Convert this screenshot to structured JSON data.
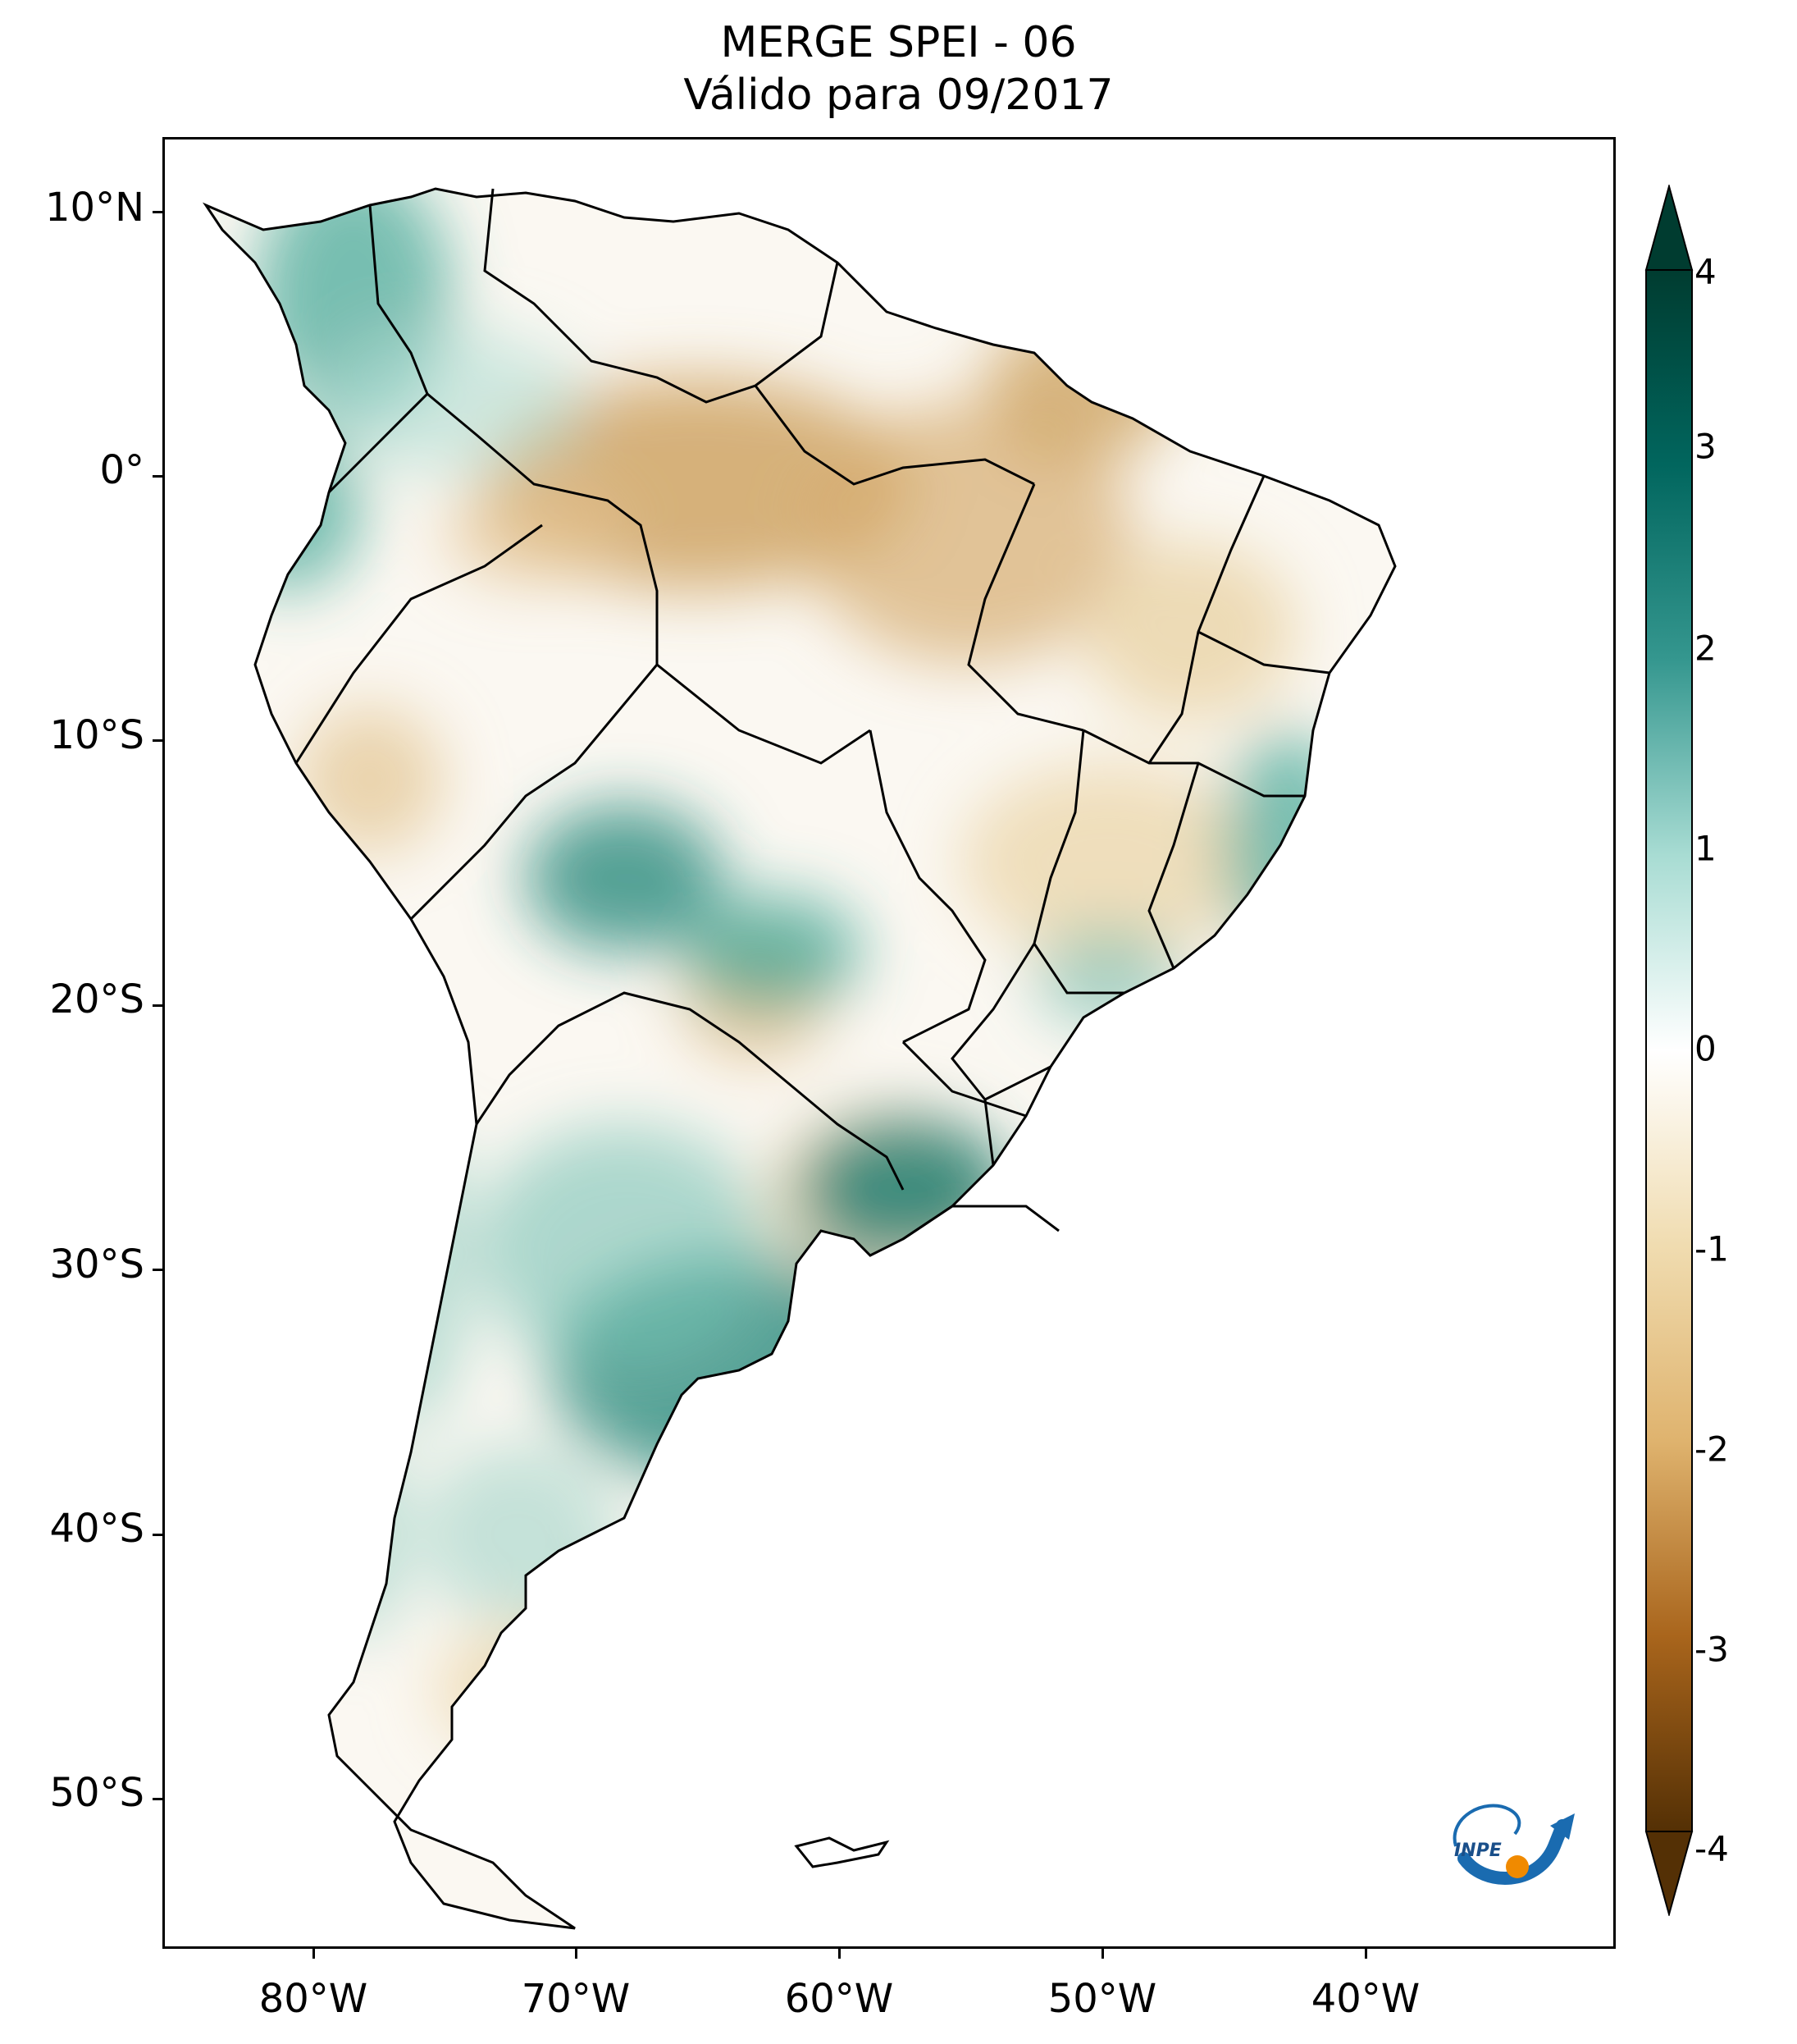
{
  "title": {
    "line1": "MERGE   SPEI - 06",
    "line2": "Válido para 09/2017"
  },
  "map": {
    "lat_ticks": [
      "10°N",
      "0°",
      "10°S",
      "20°S",
      "30°S",
      "40°S",
      "50°S"
    ],
    "lon_ticks": [
      "80°W",
      "70°W",
      "60°W",
      "50°W",
      "40°W"
    ],
    "colors": {
      "wet_dark": "#004c3c",
      "wet_mid": "#2a9988",
      "wet_light": "#c4e8e0",
      "neutral": "#ffffff",
      "dry_light": "#f2e2c0",
      "dry_mid": "#d9a95e",
      "dry_dark": "#543005",
      "border": "#000000"
    }
  },
  "colorbar": {
    "labels": [
      "4",
      "3",
      "2",
      "1",
      "0",
      "-1",
      "-2",
      "-3",
      "-4"
    ],
    "min": -4,
    "max": 4,
    "extend": "both"
  },
  "logo": {
    "text": "INPE",
    "icon": "inpe-logo-icon"
  }
}
